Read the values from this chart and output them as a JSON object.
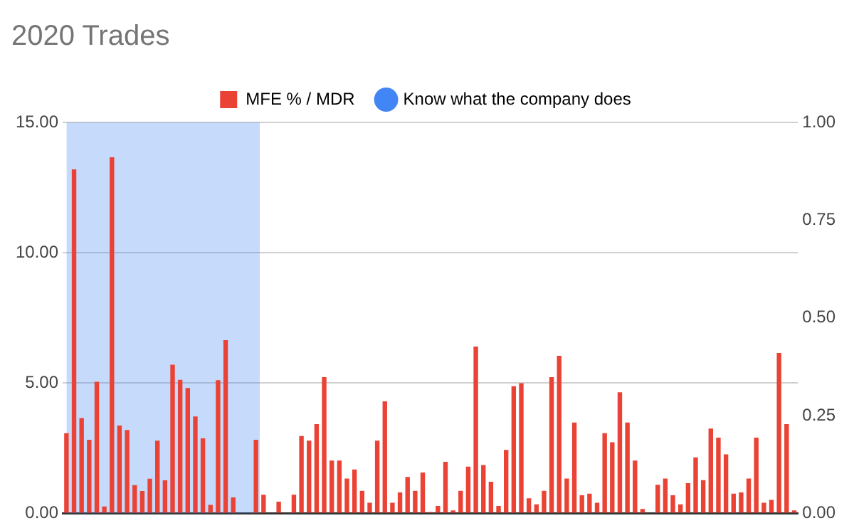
{
  "chart_data": {
    "type": "bar",
    "title": "2020 Trades",
    "categories": [
      null,
      null,
      null,
      null,
      null,
      null,
      null,
      null,
      null,
      null,
      null,
      null,
      null,
      null,
      null,
      null,
      null,
      null,
      null,
      null,
      null,
      null,
      null,
      null,
      null,
      null,
      null,
      null,
      null,
      null,
      null,
      null,
      null,
      null,
      null,
      null,
      null,
      null,
      null,
      null,
      null,
      null,
      null,
      null,
      null,
      null,
      null,
      null,
      null,
      null,
      null,
      null,
      null,
      null,
      null,
      null,
      null,
      null,
      null,
      null,
      null,
      null,
      null,
      null,
      null,
      null,
      null,
      null,
      null,
      null,
      null,
      null,
      null,
      null,
      null,
      null,
      null,
      null,
      null,
      null,
      null,
      null,
      null,
      null,
      null,
      null,
      null,
      null,
      null,
      null,
      null,
      null,
      null,
      null,
      null,
      null,
      null
    ],
    "series": [
      {
        "name": "MFE % / MDR",
        "color": "#ea4335",
        "values": [
          3.08,
          13.2,
          3.66,
          2.83,
          5.05,
          0.27,
          13.66,
          3.37,
          3.2,
          1.09,
          0.86,
          1.33,
          2.79,
          1.27,
          5.71,
          5.13,
          4.81,
          3.72,
          2.88,
          0.33,
          5.11,
          6.65,
          0.62,
          0,
          0,
          2.83,
          0.72,
          0,
          0.45,
          0,
          0.72,
          2.97,
          2.79,
          3.43,
          5.23,
          2.03,
          2.03,
          1.34,
          1.69,
          0.87,
          0.41,
          2.79,
          4.3,
          0.41,
          0.81,
          1.4,
          0.87,
          1.57,
          0.06,
          0.29,
          1.98,
          0.12,
          0.87,
          1.8,
          6.4,
          1.86,
          1.22,
          0.29,
          2.44,
          4.88,
          5.0,
          0.58,
          0.35,
          0.87,
          5.23,
          6.05,
          1.34,
          3.49,
          0.7,
          0.76,
          0.41,
          3.08,
          2.73,
          4.65,
          3.49,
          2.03,
          0.17,
          0,
          1.1,
          1.34,
          0.7,
          0.35,
          1.16,
          2.15,
          1.28,
          3.26,
          2.91,
          2.27,
          0.76,
          0.81,
          1.34,
          2.91,
          0.41,
          0.52,
          6.16,
          3.43,
          0.12
        ]
      },
      {
        "name": "Know what the company does",
        "color": "#4285f4",
        "axis": "y2",
        "type": "area",
        "values": [
          1,
          1,
          1,
          1,
          1,
          1,
          1,
          1,
          1,
          1,
          1,
          1,
          1,
          1,
          1,
          1,
          1,
          1,
          1,
          1,
          1,
          1,
          1,
          1,
          1,
          1,
          0,
          0,
          0,
          0,
          0,
          0,
          0,
          0,
          0,
          0,
          0,
          0,
          0,
          0,
          0,
          0,
          0,
          0,
          0,
          0,
          0,
          0,
          0,
          0,
          0,
          0,
          0,
          0,
          0,
          0,
          0,
          0,
          0,
          0,
          0,
          0,
          0,
          0,
          0,
          0,
          0,
          0,
          0,
          0,
          0,
          0,
          0,
          0,
          0,
          0,
          0,
          0,
          0,
          0,
          0,
          0,
          0,
          0,
          0,
          0,
          0,
          0,
          0,
          0,
          0,
          0,
          0,
          0,
          0,
          0,
          0
        ]
      }
    ],
    "ylim": [
      0,
      15
    ],
    "yticks": [
      {
        "value": 0,
        "label": "0.00"
      },
      {
        "value": 5,
        "label": "5.00"
      },
      {
        "value": 10,
        "label": "10.00"
      },
      {
        "value": 15,
        "label": "15.00"
      }
    ],
    "y2lim": [
      0,
      1
    ],
    "y2ticks": [
      {
        "value": 0,
        "label": "0.00"
      },
      {
        "value": 0.25,
        "label": "0.25"
      },
      {
        "value": 0.5,
        "label": "0.50"
      },
      {
        "value": 0.75,
        "label": "0.75"
      },
      {
        "value": 1,
        "label": "1.00"
      }
    ],
    "grid": "y",
    "legend": "top"
  }
}
